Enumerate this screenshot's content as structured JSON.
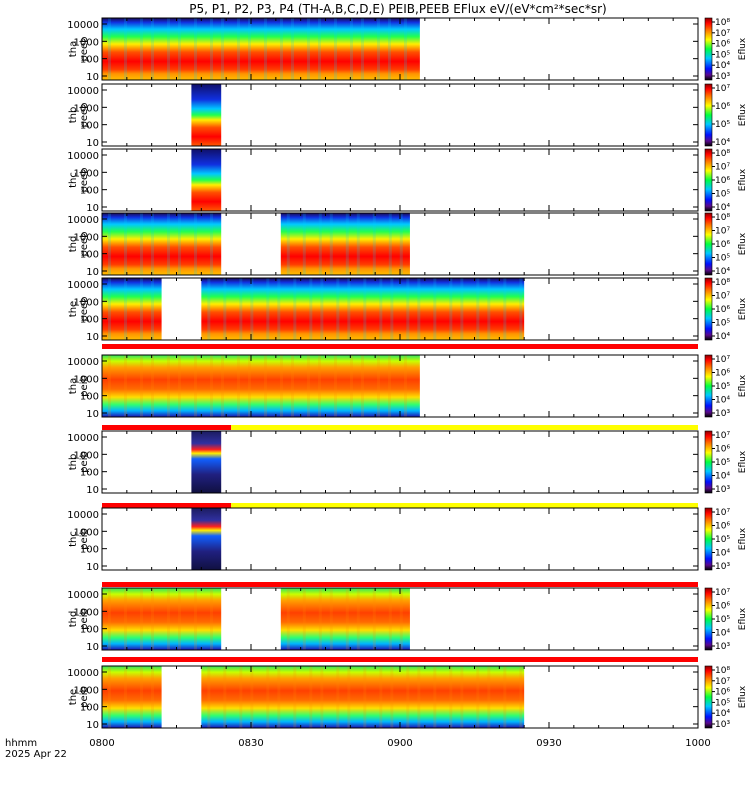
{
  "title": "P5, P1, P2, P3, P4 (TH-A,B,C,D,E) PEIB,PEEB EFlux eV/(eV*cm²*sec*sr)",
  "footer": {
    "line1": "hhmm",
    "line2": "2025 Apr 22"
  },
  "chart_data": {
    "type": "heatmap",
    "x_unit": "hhmm",
    "x_range": [
      "0800",
      "1000"
    ],
    "x_tick_labels": [
      "0800",
      "0830",
      "0900",
      "0930",
      "1000"
    ],
    "y_scale": "log",
    "y_tick_labels": [
      "10",
      "100",
      "1000",
      "10000"
    ],
    "colorbar_label": "Eflux",
    "panels": [
      {
        "probe": "tha",
        "instrument": "peeb",
        "ylabel": [
          "tha",
          "peeb"
        ],
        "coverage": [
          [
            "0800",
            "0904"
          ]
        ],
        "cbar_ticks": [
          "10³",
          "10⁴",
          "10⁵",
          "10⁶",
          "10⁷",
          "10⁸"
        ],
        "bar": "none"
      },
      {
        "probe": "thb",
        "instrument": "peeb",
        "ylabel": [
          "thb",
          "peeb"
        ],
        "coverage": [
          [
            "0818",
            "0824"
          ]
        ],
        "cbar_ticks": [
          "10⁴",
          "10⁵",
          "10⁶",
          "10⁷"
        ],
        "bar": "none"
      },
      {
        "probe": "thc",
        "instrument": "peeb",
        "ylabel": [
          "thc",
          "peeb"
        ],
        "coverage": [
          [
            "0818",
            "0824"
          ]
        ],
        "cbar_ticks": [
          "10⁴",
          "10⁵",
          "10⁶",
          "10⁷",
          "10⁸"
        ],
        "bar": "none"
      },
      {
        "probe": "thd",
        "instrument": "peeb",
        "ylabel": [
          "thd",
          "peeb"
        ],
        "coverage": [
          [
            "0800",
            "0824"
          ],
          [
            "0836",
            "0902"
          ]
        ],
        "cbar_ticks": [
          "10⁴",
          "10⁵",
          "10⁶",
          "10⁷",
          "10⁸"
        ],
        "bar": "none"
      },
      {
        "probe": "the",
        "instrument": "peeb",
        "ylabel": [
          "the",
          "peeb"
        ],
        "coverage": [
          [
            "0800",
            "0812"
          ],
          [
            "0820",
            "0925"
          ]
        ],
        "cbar_ticks": [
          "10⁴",
          "10⁵",
          "10⁶",
          "10⁷",
          "10⁸"
        ],
        "bar": "red"
      },
      {
        "probe": "tha",
        "instrument": "peib",
        "ylabel": [
          "tha",
          "peib"
        ],
        "coverage": [
          [
            "0800",
            "0904"
          ]
        ],
        "cbar_ticks": [
          "10³",
          "10⁴",
          "10⁵",
          "10⁶",
          "10⁷"
        ],
        "bar": "red-yellow"
      },
      {
        "probe": "thb",
        "instrument": "peib",
        "ylabel": [
          "thb",
          "peib"
        ],
        "coverage": [
          [
            "0818",
            "0824"
          ]
        ],
        "cbar_ticks": [
          "10³",
          "10⁴",
          "10⁵",
          "10⁶",
          "10⁷"
        ],
        "bar": "red-yellow"
      },
      {
        "probe": "thc",
        "instrument": "peib",
        "ylabel": [
          "thc",
          "peib"
        ],
        "coverage": [
          [
            "0818",
            "0824"
          ]
        ],
        "cbar_ticks": [
          "10³",
          "10⁴",
          "10⁵",
          "10⁶",
          "10⁷"
        ],
        "bar": "red"
      },
      {
        "probe": "thd",
        "instrument": "peib",
        "ylabel": [
          "thd",
          "peib"
        ],
        "coverage": [
          [
            "0800",
            "0824"
          ],
          [
            "0836",
            "0902"
          ]
        ],
        "cbar_ticks": [
          "10³",
          "10⁴",
          "10⁵",
          "10⁶",
          "10⁷"
        ],
        "bar": "red"
      },
      {
        "probe": "the",
        "instrument": "peib",
        "ylabel": [
          "the",
          "peib"
        ],
        "coverage": [
          [
            "0800",
            "0812"
          ],
          [
            "0820",
            "0925"
          ]
        ],
        "cbar_ticks": [
          "10³",
          "10⁴",
          "10⁵",
          "10⁶",
          "10⁷",
          "10⁸"
        ],
        "bar": "none"
      }
    ],
    "colors": {
      "red": "#ff0000",
      "yellow": "#ffff00",
      "frame": "#000000"
    },
    "grid": false,
    "legend": "colorbar-right"
  }
}
